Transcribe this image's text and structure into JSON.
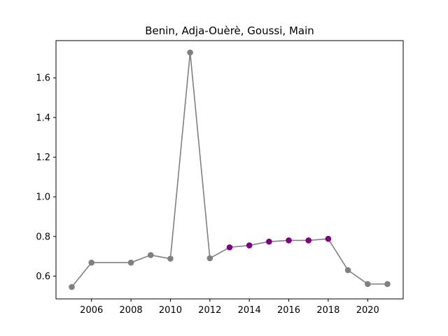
{
  "chart_data": {
    "type": "line",
    "title": "Benin, Adja-Ouèrè, Goussi, Main",
    "xlabel": "",
    "ylabel": "",
    "xlim": [
      2004.2,
      2021.8
    ],
    "ylim": [
      0.485,
      1.788
    ],
    "x_ticks": [
      2006,
      2008,
      2010,
      2012,
      2014,
      2016,
      2018,
      2020
    ],
    "y_ticks": [
      0.6,
      0.8,
      1.0,
      1.2,
      1.4,
      1.6
    ],
    "x_tick_labels": [
      "2006",
      "2008",
      "2010",
      "2012",
      "2014",
      "2016",
      "2018",
      "2020"
    ],
    "y_tick_labels": [
      "0.6",
      "0.8",
      "1.0",
      "1.2",
      "1.4",
      "1.6"
    ],
    "grid": false,
    "line_color": "#808080",
    "series": [
      {
        "x": [
          2005,
          2006,
          2008,
          2009,
          2010,
          2011,
          2012,
          2013,
          2014,
          2015,
          2016,
          2017,
          2018,
          2019,
          2020,
          2021
        ],
        "y": [
          0.545,
          0.668,
          0.668,
          0.706,
          0.688,
          1.728,
          0.69,
          0.745,
          0.755,
          0.774,
          0.78,
          0.78,
          0.788,
          0.63,
          0.56,
          0.56
        ],
        "point_colors": [
          "#808080",
          "#808080",
          "#808080",
          "#808080",
          "#808080",
          "#808080",
          "#808080",
          "#800080",
          "#800080",
          "#800080",
          "#800080",
          "#800080",
          "#800080",
          "#808080",
          "#808080",
          "#808080"
        ]
      }
    ]
  }
}
